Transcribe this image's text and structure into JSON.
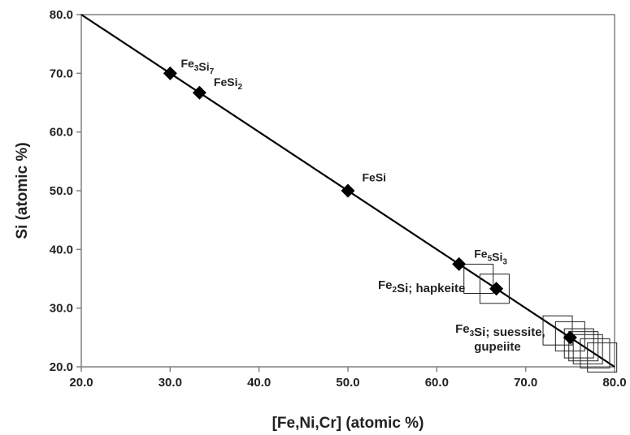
{
  "chart_data": {
    "type": "scatter",
    "xlabel": "[Fe,Ni,Cr] (atomic %)",
    "ylabel": "Si (atomic %)",
    "xlim": [
      20.0,
      80.0
    ],
    "ylim": [
      20.0,
      80.0
    ],
    "x_ticks": [
      "20.0",
      "30.0",
      "40.0",
      "50.0",
      "60.0",
      "70.0",
      "80.0"
    ],
    "y_ticks": [
      "20.0",
      "30.0",
      "40.0",
      "50.0",
      "60.0",
      "70.0",
      "80.0"
    ],
    "grid": false,
    "line": {
      "x": [
        20.0,
        80.0
      ],
      "y": [
        80.0,
        20.0
      ]
    },
    "series": [
      {
        "marker": "filled-diamond",
        "x": [
          30.0,
          33.3,
          50.0,
          62.5,
          66.7,
          75.0
        ],
        "y": [
          70.0,
          66.7,
          50.0,
          37.5,
          33.3,
          25.0
        ]
      },
      {
        "marker": "open-square",
        "x": [
          64.7,
          66.5,
          73.6,
          75.0,
          76.0,
          76.5,
          77.0,
          77.8,
          78.6
        ],
        "y": [
          35.0,
          33.3,
          26.2,
          25.2,
          24.0,
          23.5,
          23.0,
          22.3,
          21.6
        ]
      }
    ],
    "annotations": [
      {
        "base": "Fe",
        "sub1": "3",
        "mid": "Si",
        "sub2": "7",
        "rest": "",
        "line2": "",
        "x": 31.2,
        "y": 71.0,
        "anchor": "start",
        "cls": "anno"
      },
      {
        "base": "FeSi",
        "sub1": "2",
        "mid": "",
        "sub2": "",
        "rest": "",
        "line2": "",
        "x": 34.9,
        "y": 67.8,
        "anchor": "start",
        "cls": "anno"
      },
      {
        "base": "FeSi",
        "sub1": "",
        "mid": "",
        "sub2": "",
        "rest": "",
        "line2": "",
        "x": 51.6,
        "y": 51.6,
        "anchor": "start",
        "cls": "anno"
      },
      {
        "base": "Fe",
        "sub1": "5",
        "mid": "Si",
        "sub2": "3",
        "rest": "",
        "line2": "",
        "x": 64.2,
        "y": 38.6,
        "anchor": "start",
        "cls": "anno"
      },
      {
        "base": "Fe",
        "sub1": "2",
        "mid": "Si",
        "sub2": "",
        "rest": "; hapkeite",
        "line2": "",
        "x": 63.2,
        "y": 33.3,
        "anchor": "end",
        "cls": "anno-big"
      },
      {
        "base": "Fe",
        "sub1": "3",
        "mid": "Si",
        "sub2": "",
        "rest": "; suessite,",
        "line2": "gupeiite",
        "x": 72.2,
        "y": 25.8,
        "anchor": "end",
        "cls": "anno-big"
      }
    ]
  }
}
